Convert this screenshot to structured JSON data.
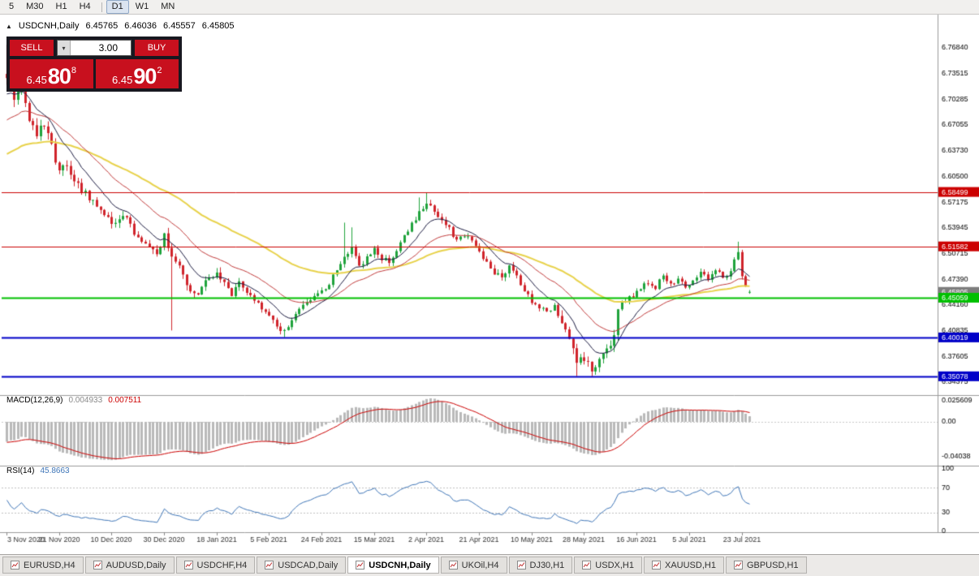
{
  "toolbar": {
    "timeframes": [
      {
        "label": "5",
        "active": false
      },
      {
        "label": "M30",
        "active": false
      },
      {
        "label": "H1",
        "active": false
      },
      {
        "label": "H4",
        "active": false
      },
      {
        "label": "D1",
        "active": true
      },
      {
        "label": "W1",
        "active": false
      },
      {
        "label": "MN",
        "active": false
      }
    ],
    "separator_after_index": 3
  },
  "icons": {
    "collapse_triangle": "▲",
    "volume_dropdown": "▾"
  },
  "chart_header": {
    "symbol": "USDCNH,Daily",
    "open": "6.45765",
    "high": "6.46036",
    "low": "6.45557",
    "close": "6.45805"
  },
  "trade_panel": {
    "sell_label": "SELL",
    "buy_label": "BUY",
    "volume": "3.00",
    "sell_price": {
      "prefix": "6.45",
      "big": "80",
      "sup": "8"
    },
    "buy_price": {
      "prefix": "6.45",
      "big": "90",
      "sup": "2"
    },
    "button_color": "#c8101e",
    "panel_bg": "#181820"
  },
  "price_axis": {
    "labels": [
      "6.76840",
      "6.73515",
      "6.70285",
      "6.67055",
      "6.63730",
      "6.60500",
      "6.57175",
      "6.53945",
      "6.50715",
      "6.47390",
      "6.44160",
      "6.40835",
      "6.37605",
      "6.34375"
    ]
  },
  "levels": [
    {
      "price": 6.58499,
      "label": "6.58499",
      "color": "#cc0000",
      "width": 1
    },
    {
      "price": 6.51582,
      "label": "6.51582",
      "color": "#cc0000",
      "width": 1
    },
    {
      "price": 6.45059,
      "label": "6.45059",
      "color": "#00c000",
      "width": 2
    },
    {
      "price": 6.40019,
      "label": "6.40019",
      "color": "#0000c8",
      "width": 2
    },
    {
      "price": 6.35078,
      "label": "6.35078",
      "color": "#0000c8",
      "width": 2
    }
  ],
  "current_price": {
    "label": "6.45805",
    "value": 6.45805,
    "box_color": "#7d7d7d"
  },
  "indicators": {
    "macd": {
      "name": "MACD(12,26,9)",
      "value_main": "0.004933",
      "value_signal": "0.007511",
      "axis": [
        "0.025609",
        "0.00",
        "-0.04038"
      ],
      "hist_color": "#b9b9b9",
      "signal_color": "#cc0000",
      "value_main_color": "#8a8a8a"
    },
    "rsi": {
      "name": "RSI(14)",
      "value": "45.8663",
      "axis": [
        "100",
        "70",
        "30",
        "0"
      ],
      "line_color": "#3f76b8",
      "level_lines": [
        70,
        30
      ]
    }
  },
  "date_axis": [
    "3 Nov 2020",
    "21 Nov 2020",
    "10 Dec 2020",
    "30 Dec 2020",
    "18 Jan 2021",
    "5 Feb 2021",
    "24 Feb 2021",
    "15 Mar 2021",
    "2 Apr 2021",
    "21 Apr 2021",
    "10 May 2021",
    "28 May 2021",
    "16 Jun 2021",
    "5 Jul 2021",
    "23 Jul 2021"
  ],
  "tabs": [
    {
      "label": "EURUSD,H4",
      "active": false
    },
    {
      "label": "AUDUSD,Daily",
      "active": false
    },
    {
      "label": "USDCHF,H4",
      "active": false
    },
    {
      "label": "USDCAD,Daily",
      "active": false
    },
    {
      "label": "USDCNH,Daily",
      "active": true
    },
    {
      "label": "UKOil,H4",
      "active": false
    },
    {
      "label": "DJ30,H1",
      "active": false
    },
    {
      "label": "USDX,H1",
      "active": false
    },
    {
      "label": "XAUUSD,H1",
      "active": false
    },
    {
      "label": "GBPUSD,H1",
      "active": false
    }
  ],
  "chart_data": {
    "type": "candlestick",
    "symbol": "USDCNH",
    "timeframe": "Daily",
    "visible_range": {
      "from": "3 Nov 2020",
      "to": "29 Jul 2021"
    },
    "price_scale": {
      "top": 6.8,
      "bottom": 6.33
    },
    "candle_count": 199,
    "up_color": "#1fa33c",
    "down_color": "#d0242b",
    "key_levels": [
      6.58499,
      6.51582,
      6.45059,
      6.40019,
      6.35078
    ],
    "last_candle": {
      "open": 6.45765,
      "high": 6.46036,
      "low": 6.45557,
      "close": 6.45805
    },
    "trend_anchors": [
      [
        0,
        6.735
      ],
      [
        2,
        6.7
      ],
      [
        4,
        6.724
      ],
      [
        6,
        6.68
      ],
      [
        8,
        6.66
      ],
      [
        10,
        6.672
      ],
      [
        12,
        6.645
      ],
      [
        14,
        6.61
      ],
      [
        16,
        6.623
      ],
      [
        18,
        6.6
      ],
      [
        20,
        6.588
      ],
      [
        23,
        6.572
      ],
      [
        26,
        6.558
      ],
      [
        28,
        6.545
      ],
      [
        31,
        6.558
      ],
      [
        34,
        6.532
      ],
      [
        37,
        6.52
      ],
      [
        40,
        6.51
      ],
      [
        42,
        6.528
      ],
      [
        44,
        6.506
      ],
      [
        46,
        6.488
      ],
      [
        48,
        6.465
      ],
      [
        51,
        6.455
      ],
      [
        54,
        6.475
      ],
      [
        56,
        6.482
      ],
      [
        58,
        6.468
      ],
      [
        60,
        6.456
      ],
      [
        62,
        6.472
      ],
      [
        64,
        6.46
      ],
      [
        66,
        6.45
      ],
      [
        68,
        6.438
      ],
      [
        70,
        6.43
      ],
      [
        72,
        6.414
      ],
      [
        74,
        6.407
      ],
      [
        76,
        6.424
      ],
      [
        78,
        6.436
      ],
      [
        80,
        6.444
      ],
      [
        82,
        6.45
      ],
      [
        84,
        6.458
      ],
      [
        86,
        6.47
      ],
      [
        88,
        6.484
      ],
      [
        90,
        6.503
      ],
      [
        92,
        6.512
      ],
      [
        94,
        6.49
      ],
      [
        96,
        6.503
      ],
      [
        98,
        6.512
      ],
      [
        100,
        6.5
      ],
      [
        102,
        6.497
      ],
      [
        104,
        6.51
      ],
      [
        106,
        6.528
      ],
      [
        108,
        6.544
      ],
      [
        110,
        6.558
      ],
      [
        112,
        6.572
      ],
      [
        114,
        6.562
      ],
      [
        116,
        6.55
      ],
      [
        118,
        6.538
      ],
      [
        120,
        6.524
      ],
      [
        122,
        6.528
      ],
      [
        124,
        6.524
      ],
      [
        126,
        6.507
      ],
      [
        128,
        6.494
      ],
      [
        130,
        6.48
      ],
      [
        132,
        6.477
      ],
      [
        134,
        6.49
      ],
      [
        136,
        6.479
      ],
      [
        138,
        6.458
      ],
      [
        140,
        6.447
      ],
      [
        142,
        6.438
      ],
      [
        144,
        6.435
      ],
      [
        146,
        6.438
      ],
      [
        148,
        6.422
      ],
      [
        150,
        6.395
      ],
      [
        152,
        6.368
      ],
      [
        154,
        6.372
      ],
      [
        156,
        6.357
      ],
      [
        158,
        6.377
      ],
      [
        160,
        6.39
      ],
      [
        162,
        6.398
      ],
      [
        163,
        6.44
      ],
      [
        165,
        6.448
      ],
      [
        167,
        6.453
      ],
      [
        169,
        6.463
      ],
      [
        171,
        6.471
      ],
      [
        173,
        6.464
      ],
      [
        175,
        6.479
      ],
      [
        177,
        6.469
      ],
      [
        179,
        6.474
      ],
      [
        181,
        6.466
      ],
      [
        183,
        6.473
      ],
      [
        185,
        6.481
      ],
      [
        187,
        6.476
      ],
      [
        189,
        6.485
      ],
      [
        191,
        6.477
      ],
      [
        193,
        6.484
      ],
      [
        195,
        6.51
      ],
      [
        196,
        6.477
      ],
      [
        197,
        6.462
      ],
      [
        198,
        6.458
      ]
    ],
    "wick_overrides": [
      {
        "i": 0,
        "high": 6.772
      },
      {
        "i": 1,
        "high": 6.756
      },
      {
        "i": 44,
        "low": 6.409
      },
      {
        "i": 74,
        "low": 6.4005
      },
      {
        "i": 90,
        "high": 6.546
      },
      {
        "i": 92,
        "high": 6.54
      },
      {
        "i": 110,
        "high": 6.578
      },
      {
        "i": 112,
        "high": 6.5838
      },
      {
        "i": 152,
        "low": 6.3509
      },
      {
        "i": 156,
        "low": 6.3508
      },
      {
        "i": 195,
        "high": 6.5218
      }
    ],
    "volatility_zones": [
      {
        "until": 18,
        "mult": 2.0
      },
      {
        "until": 60,
        "mult": 1.35
      },
      {
        "until": 148,
        "mult": 1.0
      },
      {
        "until": 164,
        "mult": 1.5
      },
      {
        "until": 999,
        "mult": 0.9
      }
    ],
    "moving_averages": [
      {
        "type": "ema",
        "period": 60,
        "color": "#e8d24a",
        "seed": 6.63,
        "width": 2
      },
      {
        "type": "ema",
        "period": 25,
        "color": "#c23b3b",
        "seed": 6.672,
        "width": 1
      },
      {
        "type": "ema",
        "period": 10,
        "color": "#1a1a40",
        "seed": 6.705,
        "width": 1
      }
    ],
    "macd_config": {
      "fast": 12,
      "slow": 26,
      "signal": 9,
      "seed_fast": 6.715,
      "seed_slow": 6.737,
      "seed_signal": -0.02
    },
    "rsi_config": {
      "period": 14,
      "seed_gain": 0.004,
      "seed_loss": 0.005
    }
  }
}
